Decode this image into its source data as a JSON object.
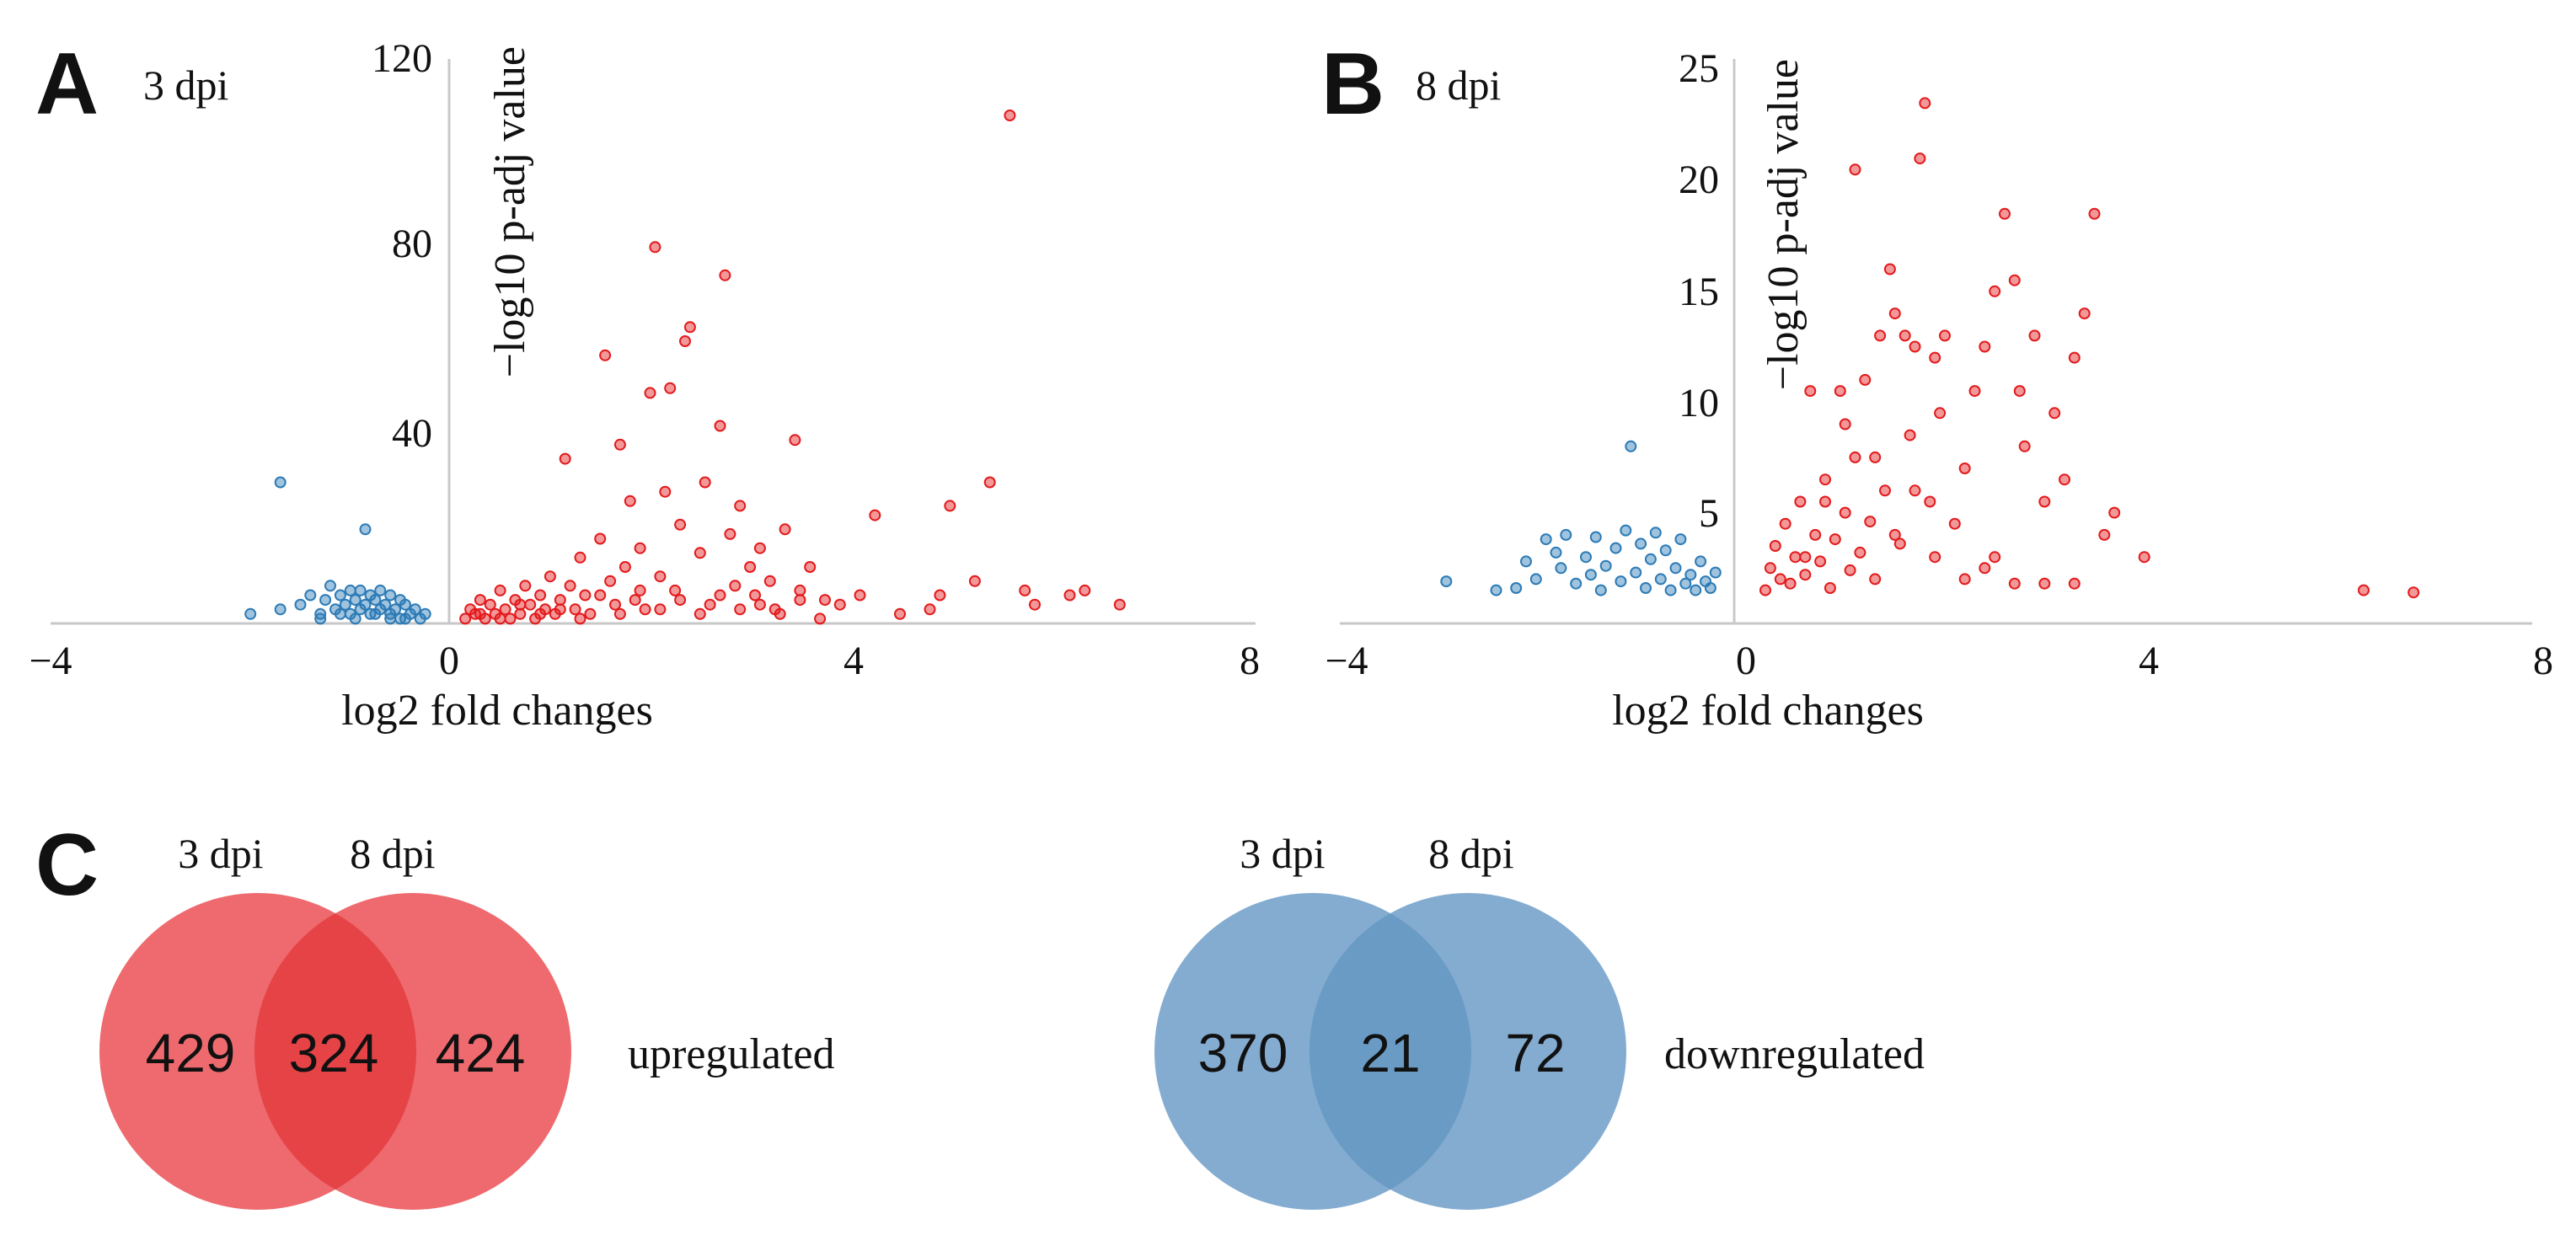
{
  "chart_data": [
    {
      "panel": "A",
      "type": "scatter",
      "title": "3 dpi",
      "xlabel": "log2 fold changes",
      "ylabel": "−log10 p-adj value",
      "xlim": [
        -4,
        8
      ],
      "ylim": [
        0,
        120
      ],
      "xticks": [
        "−4",
        "0",
        "4",
        "8"
      ],
      "yticks": [
        "40",
        "80",
        "120"
      ],
      "colors": {
        "up": "#e31a1c",
        "down": "#2c7bb6"
      },
      "series": [
        {
          "name": "downregulated",
          "points": [
            [
              -2.0,
              2
            ],
            [
              -1.7,
              30
            ],
            [
              -1.7,
              3
            ],
            [
              -1.5,
              4
            ],
            [
              -1.4,
              6
            ],
            [
              -1.3,
              2
            ],
            [
              -1.25,
              5
            ],
            [
              -1.2,
              8
            ],
            [
              -1.15,
              3
            ],
            [
              -1.1,
              6
            ],
            [
              -1.05,
              4
            ],
            [
              -1.0,
              7
            ],
            [
              -1.0,
              2
            ],
            [
              -0.95,
              5
            ],
            [
              -0.9,
              3
            ],
            [
              -0.9,
              7
            ],
            [
              -0.85,
              20
            ],
            [
              -0.85,
              4
            ],
            [
              -0.8,
              6
            ],
            [
              -0.8,
              2
            ],
            [
              -0.75,
              5
            ],
            [
              -0.7,
              3
            ],
            [
              -0.7,
              7
            ],
            [
              -0.65,
              4
            ],
            [
              -0.6,
              6
            ],
            [
              -0.6,
              2
            ],
            [
              -0.55,
              3
            ],
            [
              -0.5,
              5
            ],
            [
              -0.5,
              1
            ],
            [
              -0.45,
              4
            ],
            [
              -0.4,
              2
            ],
            [
              -0.35,
              3
            ],
            [
              -0.3,
              1
            ],
            [
              -0.25,
              2
            ],
            [
              -1.3,
              1
            ],
            [
              -1.1,
              2
            ],
            [
              -0.95,
              1
            ],
            [
              -0.75,
              2
            ],
            [
              -0.6,
              1
            ],
            [
              -0.45,
              1
            ]
          ]
        },
        {
          "name": "upregulated",
          "points": [
            [
              0.15,
              1
            ],
            [
              0.2,
              3
            ],
            [
              0.25,
              2
            ],
            [
              0.3,
              5
            ],
            [
              0.35,
              1
            ],
            [
              0.4,
              4
            ],
            [
              0.45,
              2
            ],
            [
              0.5,
              7
            ],
            [
              0.55,
              3
            ],
            [
              0.6,
              1
            ],
            [
              0.65,
              5
            ],
            [
              0.7,
              2
            ],
            [
              0.75,
              8
            ],
            [
              0.8,
              4
            ],
            [
              0.85,
              1
            ],
            [
              0.9,
              6
            ],
            [
              0.95,
              3
            ],
            [
              1.0,
              10
            ],
            [
              1.05,
              2
            ],
            [
              1.1,
              5
            ],
            [
              1.15,
              35
            ],
            [
              1.2,
              8
            ],
            [
              1.25,
              3
            ],
            [
              1.3,
              14
            ],
            [
              1.35,
              6
            ],
            [
              1.4,
              2
            ],
            [
              1.5,
              18
            ],
            [
              1.55,
              57
            ],
            [
              1.6,
              9
            ],
            [
              1.65,
              4
            ],
            [
              1.7,
              38
            ],
            [
              1.75,
              12
            ],
            [
              1.8,
              26
            ],
            [
              1.85,
              5
            ],
            [
              1.9,
              16
            ],
            [
              1.95,
              3
            ],
            [
              2.0,
              49
            ],
            [
              2.05,
              80
            ],
            [
              2.1,
              10
            ],
            [
              2.15,
              28
            ],
            [
              2.2,
              50
            ],
            [
              2.25,
              7
            ],
            [
              2.3,
              21
            ],
            [
              2.35,
              60
            ],
            [
              2.4,
              63
            ],
            [
              2.5,
              15
            ],
            [
              2.55,
              30
            ],
            [
              2.6,
              4
            ],
            [
              2.7,
              42
            ],
            [
              2.75,
              74
            ],
            [
              2.8,
              19
            ],
            [
              2.85,
              8
            ],
            [
              2.9,
              25
            ],
            [
              3.0,
              12
            ],
            [
              3.05,
              6
            ],
            [
              3.1,
              16
            ],
            [
              3.2,
              9
            ],
            [
              3.25,
              3
            ],
            [
              3.35,
              20
            ],
            [
              3.45,
              39
            ],
            [
              3.5,
              7
            ],
            [
              3.6,
              12
            ],
            [
              3.75,
              5
            ],
            [
              3.9,
              4
            ],
            [
              4.1,
              6
            ],
            [
              4.25,
              23
            ],
            [
              4.5,
              2
            ],
            [
              4.8,
              3
            ],
            [
              4.9,
              6
            ],
            [
              5.0,
              25
            ],
            [
              5.25,
              9
            ],
            [
              5.4,
              30
            ],
            [
              5.6,
              108
            ],
            [
              5.75,
              7
            ],
            [
              5.85,
              4
            ],
            [
              6.2,
              6
            ],
            [
              6.35,
              7
            ],
            [
              6.7,
              4
            ],
            [
              0.3,
              2
            ],
            [
              0.5,
              1
            ],
            [
              0.7,
              4
            ],
            [
              0.9,
              2
            ],
            [
              1.1,
              3
            ],
            [
              1.3,
              1
            ],
            [
              1.5,
              6
            ],
            [
              1.7,
              2
            ],
            [
              1.9,
              7
            ],
            [
              2.1,
              3
            ],
            [
              2.3,
              5
            ],
            [
              2.5,
              2
            ],
            [
              2.7,
              6
            ],
            [
              2.9,
              3
            ],
            [
              3.1,
              4
            ],
            [
              3.3,
              2
            ],
            [
              3.5,
              5
            ],
            [
              3.7,
              1
            ]
          ]
        }
      ]
    },
    {
      "panel": "B",
      "type": "scatter",
      "title": "8 dpi",
      "xlabel": "log2 fold changes",
      "ylabel": "−log10 p-adj value",
      "xlim": [
        -4,
        8
      ],
      "ylim": [
        0,
        25
      ],
      "xticks": [
        "−4",
        "0",
        "4",
        "8"
      ],
      "yticks": [
        "5",
        "10",
        "15",
        "20",
        "25"
      ],
      "colors": {
        "up": "#e31a1c",
        "down": "#2c7bb6"
      },
      "series": [
        {
          "name": "downregulated",
          "points": [
            [
              -3.0,
              1.9
            ],
            [
              -2.5,
              1.5
            ],
            [
              -2.3,
              1.6
            ],
            [
              -2.2,
              2.8
            ],
            [
              -2.1,
              2.0
            ],
            [
              -2.0,
              3.8
            ],
            [
              -1.9,
              3.2
            ],
            [
              -1.85,
              2.5
            ],
            [
              -1.8,
              4.0
            ],
            [
              -1.7,
              1.8
            ],
            [
              -1.6,
              3.0
            ],
            [
              -1.55,
              2.2
            ],
            [
              -1.5,
              3.9
            ],
            [
              -1.45,
              1.5
            ],
            [
              -1.4,
              2.6
            ],
            [
              -1.3,
              3.4
            ],
            [
              -1.25,
              1.9
            ],
            [
              -1.2,
              4.2
            ],
            [
              -1.15,
              8.0
            ],
            [
              -1.1,
              2.3
            ],
            [
              -1.05,
              3.6
            ],
            [
              -1.0,
              1.6
            ],
            [
              -0.95,
              2.9
            ],
            [
              -0.9,
              4.1
            ],
            [
              -0.85,
              2.0
            ],
            [
              -0.8,
              3.3
            ],
            [
              -0.75,
              1.5
            ],
            [
              -0.7,
              2.5
            ],
            [
              -0.65,
              3.8
            ],
            [
              -0.6,
              1.8
            ],
            [
              -0.55,
              2.2
            ],
            [
              -0.5,
              1.5
            ],
            [
              -0.45,
              2.8
            ],
            [
              -0.4,
              1.9
            ],
            [
              -0.35,
              1.6
            ],
            [
              -0.3,
              2.3
            ]
          ]
        },
        {
          "name": "upregulated",
          "points": [
            [
              0.2,
              1.5
            ],
            [
              0.25,
              2.5
            ],
            [
              0.3,
              3.5
            ],
            [
              0.35,
              2.0
            ],
            [
              0.4,
              4.5
            ],
            [
              0.45,
              1.8
            ],
            [
              0.5,
              3.0
            ],
            [
              0.55,
              5.5
            ],
            [
              0.6,
              2.2
            ],
            [
              0.65,
              10.5
            ],
            [
              0.7,
              4.0
            ],
            [
              0.75,
              2.8
            ],
            [
              0.8,
              6.5
            ],
            [
              0.85,
              1.6
            ],
            [
              0.9,
              3.8
            ],
            [
              0.95,
              10.5
            ],
            [
              1.0,
              5.0
            ],
            [
              1.05,
              2.4
            ],
            [
              1.1,
              7.5
            ],
            [
              1.15,
              3.2
            ],
            [
              1.2,
              11.0
            ],
            [
              1.25,
              4.6
            ],
            [
              1.3,
              2.0
            ],
            [
              1.35,
              13.0
            ],
            [
              1.4,
              6.0
            ],
            [
              1.45,
              16.0
            ],
            [
              1.5,
              14.0
            ],
            [
              1.55,
              3.6
            ],
            [
              1.6,
              13.0
            ],
            [
              1.65,
              8.5
            ],
            [
              1.7,
              12.5
            ],
            [
              1.75,
              21.0
            ],
            [
              1.8,
              23.5
            ],
            [
              1.85,
              5.5
            ],
            [
              1.9,
              12.0
            ],
            [
              1.95,
              9.5
            ],
            [
              2.0,
              13.0
            ],
            [
              2.1,
              4.5
            ],
            [
              2.2,
              7.0
            ],
            [
              2.3,
              10.5
            ],
            [
              2.4,
              12.5
            ],
            [
              2.5,
              15.0
            ],
            [
              2.6,
              18.5
            ],
            [
              2.7,
              15.5
            ],
            [
              2.75,
              10.5
            ],
            [
              2.8,
              8.0
            ],
            [
              2.9,
              13.0
            ],
            [
              3.0,
              5.5
            ],
            [
              3.1,
              9.5
            ],
            [
              3.2,
              6.5
            ],
            [
              3.3,
              12.0
            ],
            [
              3.4,
              14.0
            ],
            [
              3.5,
              18.5
            ],
            [
              3.6,
              4.0
            ],
            [
              3.7,
              5.0
            ],
            [
              4.0,
              3.0
            ],
            [
              6.2,
              1.5
            ],
            [
              6.7,
              1.4
            ],
            [
              1.1,
              20.5
            ],
            [
              1.0,
              9.0
            ],
            [
              0.8,
              5.5
            ],
            [
              0.6,
              3.0
            ],
            [
              1.3,
              7.5
            ],
            [
              1.5,
              4.0
            ],
            [
              1.7,
              6.0
            ],
            [
              1.9,
              3.0
            ],
            [
              2.2,
              2.0
            ],
            [
              2.5,
              3.0
            ],
            [
              3.0,
              1.8
            ],
            [
              3.3,
              1.8
            ],
            [
              2.7,
              1.8
            ],
            [
              2.4,
              2.5
            ]
          ]
        }
      ]
    }
  ],
  "venns": [
    {
      "panel": "C",
      "set_labels": [
        "3 dpi",
        "8 dpi"
      ],
      "only_left": "429",
      "intersection": "324",
      "only_right": "424",
      "side_label": "upregulated",
      "fill": "#ee6a6e",
      "overlap_fill": "#e64347"
    },
    {
      "set_labels": [
        "3 dpi",
        "8 dpi"
      ],
      "only_left": "370",
      "intersection": "21",
      "only_right": "72",
      "side_label": "downregulated",
      "fill": "#84acd1",
      "overlap_fill": "#6a9bc4"
    }
  ]
}
